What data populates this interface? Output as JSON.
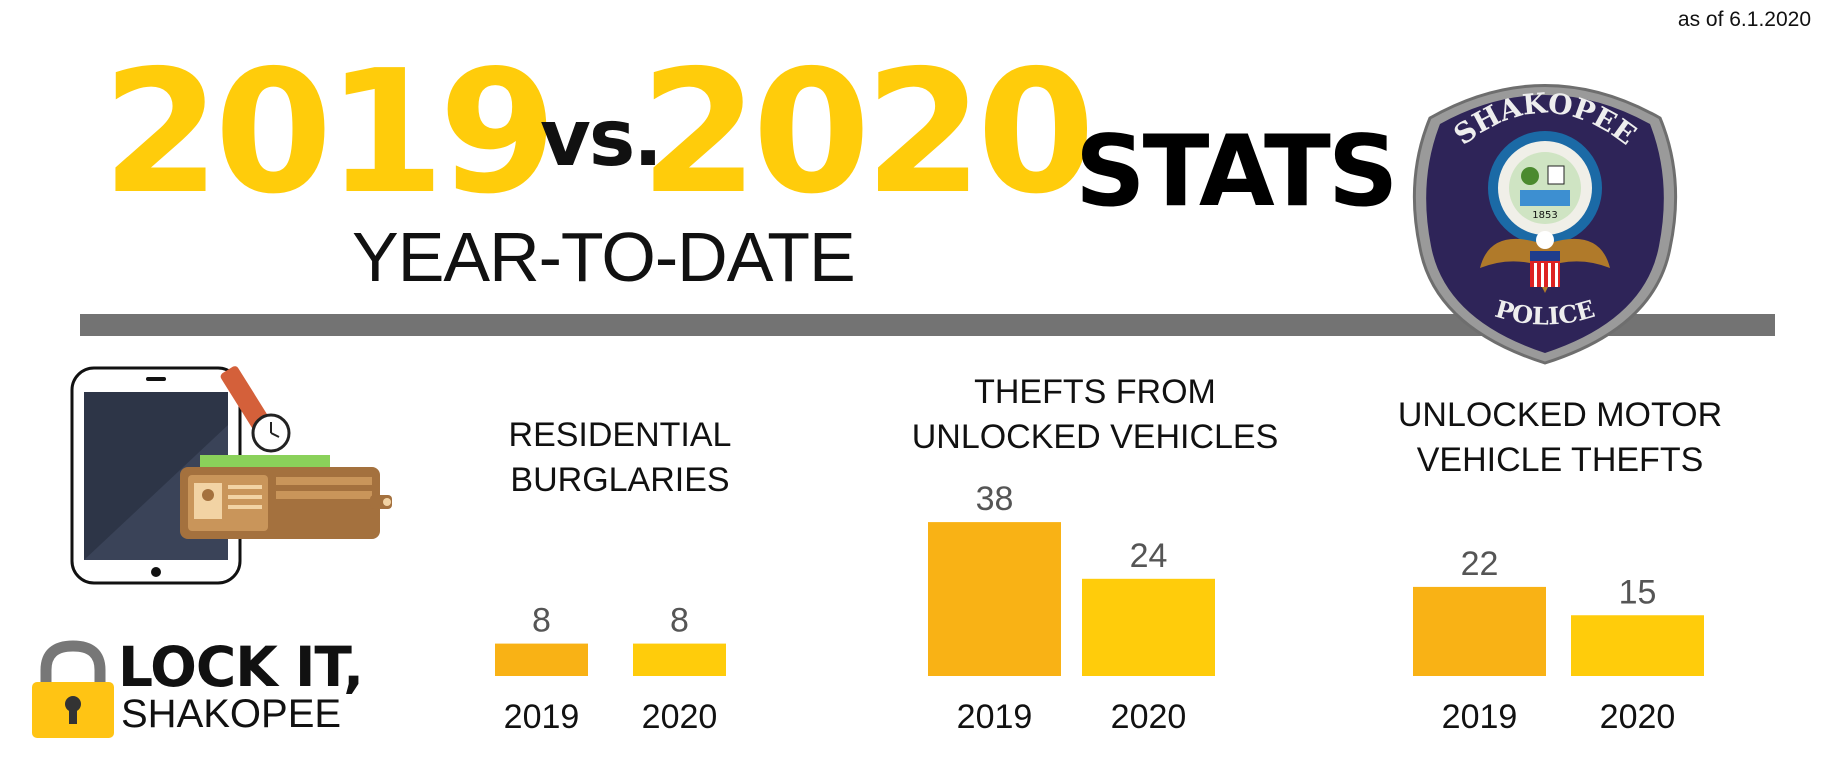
{
  "header": {
    "as_of": "as of 6.1.2020",
    "year_a": "2019",
    "vs": "vs.",
    "year_b": "2020",
    "stats": "STATS",
    "subtitle": "YEAR-TO-DATE"
  },
  "badge": {
    "top_text": "SHAKOPEE",
    "bottom_text": "POLICE",
    "seal_year": "1853"
  },
  "campaign": {
    "line1": "LOCK IT,",
    "line2": "SHAKOPEE"
  },
  "colors": {
    "accent": "#FFCC0B",
    "bar_2019": "#F9B215",
    "bar_2020": "#FFCC0B",
    "rule": "#737373",
    "badge_bg": "#2E2458"
  },
  "icons": [
    "tablet-icon",
    "wallet-icon",
    "watch-icon",
    "padlock-icon",
    "police-badge-icon"
  ],
  "chart_data": [
    {
      "type": "bar",
      "title": [
        "RESIDENTIAL BURGLARIES"
      ],
      "categories": [
        "2019",
        "2020"
      ],
      "values": [
        8,
        8
      ]
    },
    {
      "type": "bar",
      "title": [
        "THEFTS FROM",
        "UNLOCKED VEHICLES"
      ],
      "categories": [
        "2019",
        "2020"
      ],
      "values": [
        38,
        24
      ]
    },
    {
      "type": "bar",
      "title": [
        "UNLOCKED MOTOR",
        "VEHICLE THEFTS"
      ],
      "categories": [
        "2019",
        "2020"
      ],
      "values": [
        22,
        15
      ]
    }
  ]
}
